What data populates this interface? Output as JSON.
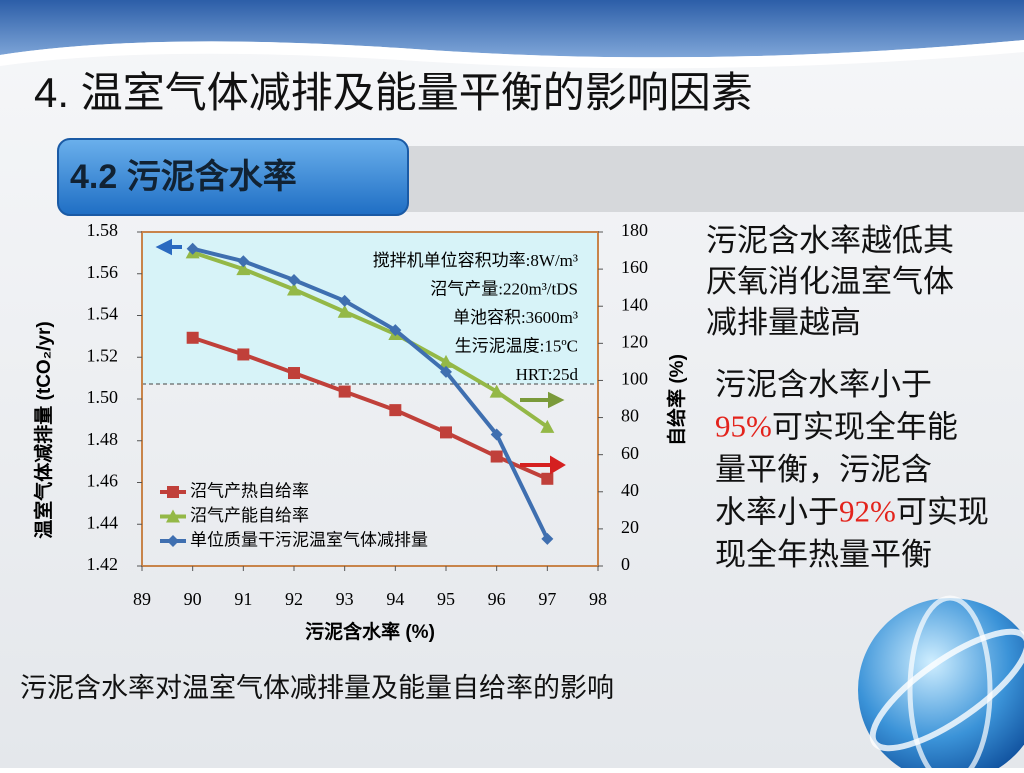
{
  "slide_title": "4. 温室气体减排及能量平衡的影响因素",
  "section_title": "4.2  污泥含水率",
  "caption": "污泥含水率对温室气体减排量及能量自给率的影响",
  "notes": [
    {
      "lines": [
        [
          {
            "text": "污泥含水率越低其"
          }
        ],
        [
          {
            "text": "厌氧消化温室气体"
          }
        ],
        [
          {
            "text": "减排量越高"
          }
        ]
      ]
    },
    {
      "lines": [
        [
          {
            "text": "污泥含水率小于"
          }
        ],
        [
          {
            "text": "95%",
            "color": "#e3231c"
          },
          {
            "text": "可实现全年能"
          }
        ],
        [
          {
            "text": "量平衡，污泥含"
          }
        ],
        [
          {
            "text": "水率小于"
          },
          {
            "text": "92%",
            "color": "#e3231c"
          },
          {
            "text": "可实现"
          }
        ],
        [
          {
            "text": "现全年热量平衡"
          }
        ]
      ]
    }
  ],
  "chart_data": {
    "type": "line",
    "x": [
      90,
      91,
      92,
      93,
      94,
      95,
      96,
      97
    ],
    "xlim": [
      89,
      98
    ],
    "xticks": [
      89,
      90,
      91,
      92,
      93,
      94,
      95,
      96,
      97,
      98
    ],
    "ylim": [
      1.42,
      1.58
    ],
    "yticks": [
      1.42,
      1.44,
      1.46,
      1.48,
      {
        "value": 1.5,
        "label": "1.50"
      },
      1.52,
      1.54,
      1.56,
      1.58
    ],
    "y2lim": [
      0,
      180
    ],
    "y2ticks": [
      0,
      20,
      40,
      60,
      80,
      100,
      120,
      140,
      160,
      180
    ],
    "x_label": "污泥含水率 (%)",
    "y_label": "温室气体减排量 (tCO₂/yr)",
    "y2_label": "自给率 (%)",
    "annotations": [
      "搅拌机单位容积功率:8W/m³",
      "沼气产量:220m³/tDS",
      "单池容积:3600m³",
      "生污泥温度:15ºC",
      "HRT:25d"
    ],
    "series": [
      {
        "name": "沼气产热自给率",
        "color": "#c0403a",
        "marker": "square",
        "axis": "y2",
        "values": [
          123,
          114,
          104,
          94,
          84,
          72,
          59,
          47
        ]
      },
      {
        "name": "沼气产能自给率",
        "color": "#94b847",
        "marker": "triangle",
        "axis": "y2",
        "values": [
          169,
          160,
          149,
          137,
          125,
          110,
          94,
          75
        ]
      },
      {
        "name": "单位质量干污泥温室气体减排量",
        "color": "#3f6fb0",
        "marker": "diamond",
        "values": [
          1.572,
          1.566,
          1.557,
          1.547,
          1.533,
          1.513,
          1.483,
          1.433
        ]
      }
    ]
  }
}
